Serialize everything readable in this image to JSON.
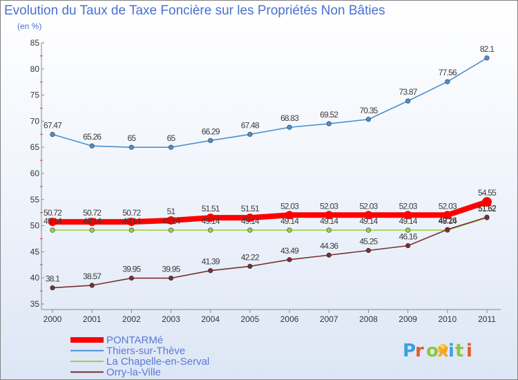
{
  "chart_data": {
    "type": "line",
    "title": "Evolution du Taux de Taxe Foncière sur les Propriétés Non Bâties",
    "subtitle": "(en %)",
    "x": [
      "2000",
      "2001",
      "2002",
      "2003",
      "2004",
      "2005",
      "2006",
      "2007",
      "2008",
      "2009",
      "2010",
      "2011"
    ],
    "ylim": [
      35,
      85
    ],
    "yticks": [
      35,
      40,
      45,
      50,
      55,
      60,
      65,
      70,
      75,
      80,
      85
    ],
    "grid": false,
    "series": [
      {
        "name": "Thiers-sur-Thève",
        "color": "#4a90d0",
        "values": [
          67.47,
          65.26,
          65,
          65,
          66.29,
          67.48,
          68.83,
          69.52,
          70.35,
          73.87,
          77.56,
          82.1
        ],
        "labels": [
          "67.47",
          "65.26",
          "65",
          "65",
          "66.29",
          "67.48",
          "68.83",
          "69.52",
          "70.35",
          "73.87",
          "77.56",
          "82.1"
        ]
      },
      {
        "name": "La Chapelle-en-Serval",
        "color": "#9ad048",
        "values": [
          49.14,
          49.14,
          49.14,
          49.14,
          49.14,
          49.14,
          49.14,
          49.14,
          49.14,
          49.14,
          49.14,
          51.52
        ],
        "labels": [
          "49.14",
          "49.14",
          "49.14",
          "49.14",
          "49.14",
          "49.14",
          "49.14",
          "49.14",
          "49.14",
          "49.14",
          "49.14",
          "51.52"
        ]
      },
      {
        "name": "Orry-la-Ville",
        "color": "#7a2e2e",
        "values": [
          38.1,
          38.57,
          39.95,
          39.95,
          41.39,
          42.22,
          43.49,
          44.36,
          45.25,
          46.16,
          49.26,
          51.62
        ],
        "labels": [
          "38.1",
          "38.57",
          "39.95",
          "39.95",
          "41.39",
          "42.22",
          "43.49",
          "44.36",
          "45.25",
          "46.16",
          "49.26",
          "51.62"
        ]
      },
      {
        "name": "PONTARMé",
        "color": "#ff0000",
        "values": [
          50.72,
          50.72,
          50.72,
          51,
          51.51,
          51.51,
          52.03,
          52.03,
          52.03,
          52.03,
          52.03,
          54.55
        ],
        "labels": [
          "50.72",
          "50.72",
          "50.72",
          "51",
          "51.51",
          "51.51",
          "52.03",
          "52.03",
          "52.03",
          "52.03",
          "52.03",
          "54.55"
        ]
      }
    ],
    "legend_order": [
      "PONTARMé",
      "Thiers-sur-Thève",
      "La Chapelle-en-Serval",
      "Orry-la-Ville"
    ],
    "legend_position": "bottom-left"
  },
  "brand": {
    "text": "Proxiti"
  }
}
